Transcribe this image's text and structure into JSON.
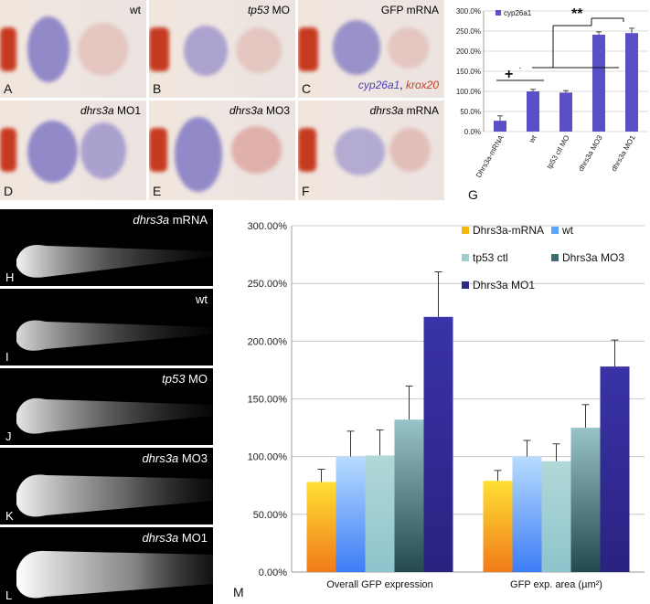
{
  "panels_top": [
    {
      "letter": "A",
      "label": "wt"
    },
    {
      "letter": "B",
      "label_italic": "tp53",
      "label_rest": " MO"
    },
    {
      "letter": "C",
      "label": "GFP mRNA",
      "legend_a": "cyp26a1",
      "legend_sep": ", ",
      "legend_b": "krox20"
    },
    {
      "letter": "D",
      "label_italic": "dhrs3a",
      "label_rest": " MO1"
    },
    {
      "letter": "E",
      "label_italic": "dhrs3a",
      "label_rest": " MO3"
    },
    {
      "letter": "F",
      "label_italic": "dhrs3a",
      "label_rest": " mRNA"
    }
  ],
  "panels_bw": [
    {
      "letter": "H",
      "label_italic": "dhrs3a",
      "label_rest": " mRNA"
    },
    {
      "letter": "I",
      "label": "wt"
    },
    {
      "letter": "J",
      "label_italic": "tp53",
      "label_rest": " MO"
    },
    {
      "letter": "K",
      "label_italic": "dhrs3a",
      "label_rest": " MO3"
    },
    {
      "letter": "L",
      "label_italic": "dhrs3a",
      "label_rest": " MO1"
    }
  ],
  "panel_letters": {
    "G": "G",
    "M": "M"
  },
  "colors": {
    "purple": "#5b4fc7",
    "dark_blue": "#2d2a8c",
    "ish_purple": "#4b3fb0",
    "ish_red": "#c0402a"
  },
  "chart_data": [
    {
      "type": "bar",
      "panel": "G",
      "categories": [
        "Dhrs3a-mRNA",
        "wt",
        "tp53 ctl MO",
        "dhrs3a MO3",
        "dhrs3a MO1"
      ],
      "series": [
        {
          "name": "cyp26a1",
          "values": [
            27,
            100,
            97,
            241,
            245
          ],
          "errors": [
            12,
            5,
            5,
            7,
            12
          ]
        }
      ],
      "ylim": [
        0,
        300
      ],
      "yticks": [
        "0.0%",
        "50.0%",
        "100.0%",
        "150.0%",
        "200.0%",
        "250.0%",
        "300.0%"
      ],
      "annotations": [
        "+",
        "**"
      ]
    },
    {
      "type": "bar",
      "panel": "M",
      "categories": [
        "Overall GFP expression",
        "GFP exp. area (µm²)"
      ],
      "series": [
        {
          "name": "Dhrs3a-mRNA",
          "values": [
            78,
            79
          ],
          "errors": [
            11,
            9
          ]
        },
        {
          "name": "wt",
          "values": [
            100,
            100
          ],
          "errors": [
            22,
            14
          ]
        },
        {
          "name": "tp53 ctl",
          "values": [
            101,
            96
          ],
          "errors": [
            22,
            15
          ]
        },
        {
          "name": "Dhrs3a MO3",
          "values": [
            132,
            125
          ],
          "errors": [
            29,
            20
          ]
        },
        {
          "name": "Dhrs3a MO1",
          "values": [
            221,
            178
          ],
          "errors": [
            39,
            23
          ]
        }
      ],
      "ylim": [
        0,
        300
      ],
      "yticks": [
        "0.00%",
        "50.00%",
        "100.00%",
        "150.00%",
        "200.00%",
        "250.00%",
        "300.00%"
      ],
      "legend_placement": "top-right",
      "grid": true
    }
  ]
}
